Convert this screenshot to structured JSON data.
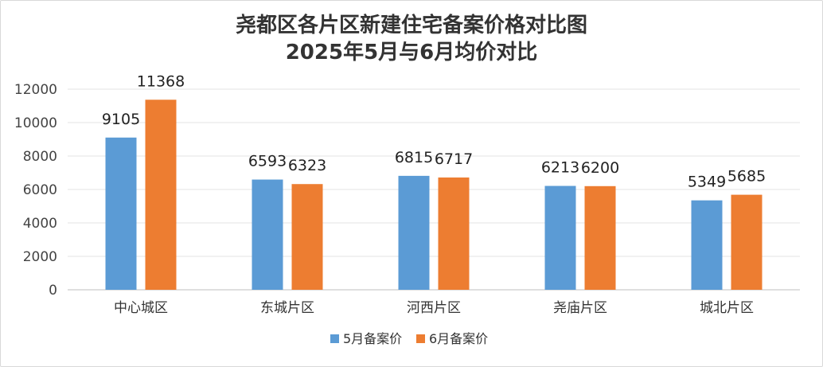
{
  "chart_data": {
    "type": "bar",
    "title_line1": "尧都区各片区新建住宅备案价格对比图",
    "title_line2": "2025年5月与6月均价对比",
    "categories": [
      "中心城区",
      "东城片区",
      "河西片区",
      "尧庙片区",
      "城北片区"
    ],
    "series": [
      {
        "name": "5月备案价",
        "color": "#5b9bd5",
        "values": [
          9105,
          6593,
          6815,
          6213,
          5349
        ]
      },
      {
        "name": "6月备案价",
        "color": "#ed7d31",
        "values": [
          11368,
          6323,
          6717,
          6200,
          5685
        ]
      }
    ],
    "ylim": [
      0,
      12000
    ],
    "yticks": [
      0,
      2000,
      4000,
      6000,
      8000,
      10000,
      12000
    ],
    "grid": true,
    "legend": "bottom"
  }
}
